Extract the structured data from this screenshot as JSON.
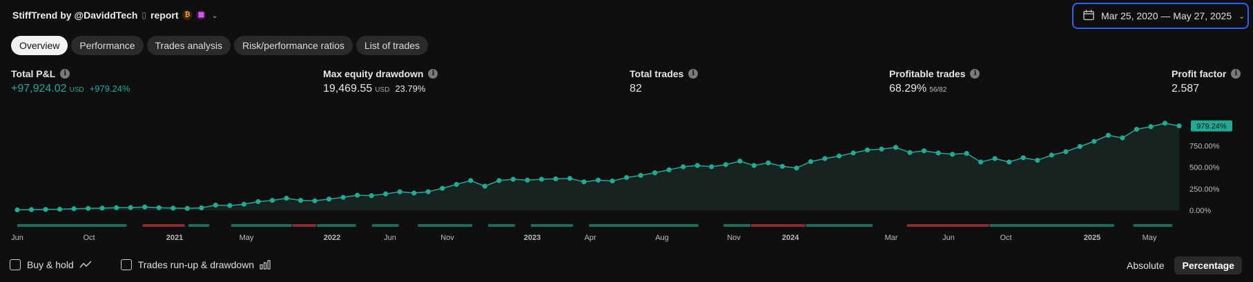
{
  "header": {
    "title": "StiffTrend by @DaviddTech",
    "glyph": "▯",
    "report_label": "report",
    "icons": [
      "strategy-badge-icon",
      "calendar-badge-icon"
    ],
    "dropdown_icon": "chevron-down-icon"
  },
  "date_range": {
    "label": "Mar 25, 2020 — May 27, 2025",
    "icon": "calendar-icon"
  },
  "tabs": [
    {
      "label": "Overview",
      "active": true
    },
    {
      "label": "Performance",
      "active": false
    },
    {
      "label": "Trades analysis",
      "active": false
    },
    {
      "label": "Risk/performance ratios",
      "active": false
    },
    {
      "label": "List of trades",
      "active": false
    }
  ],
  "stats": {
    "total_pnl": {
      "label": "Total P&L",
      "value": "+97,924.02",
      "unit": "USD",
      "pct": "+979.24%"
    },
    "max_drawdown": {
      "label": "Max equity drawdown",
      "value": "19,469.55",
      "unit": "USD",
      "pct": "23.79%"
    },
    "total_trades": {
      "label": "Total trades",
      "value": "82"
    },
    "profitable_trades": {
      "label": "Profitable trades",
      "value": "68.29%",
      "sub": "56/82"
    },
    "profit_factor": {
      "label": "Profit factor",
      "value": "2.587"
    }
  },
  "chart_data": {
    "type": "line",
    "y_ticks": [
      "0.00%",
      "250.00%",
      "500.00%",
      "750.00%"
    ],
    "ylim": [
      0,
      1000
    ],
    "last_value_label": "979.24%",
    "x_ticks": [
      {
        "label": "Jun",
        "bold": false
      },
      {
        "label": "Oct",
        "bold": false
      },
      {
        "label": "2021",
        "bold": true
      },
      {
        "label": "May",
        "bold": false
      },
      {
        "label": "2022",
        "bold": true
      },
      {
        "label": "Jun",
        "bold": false
      },
      {
        "label": "Nov",
        "bold": false
      },
      {
        "label": "2023",
        "bold": true
      },
      {
        "label": "Apr",
        "bold": false
      },
      {
        "label": "Aug",
        "bold": false
      },
      {
        "label": "Nov",
        "bold": false
      },
      {
        "label": "2024",
        "bold": true
      },
      {
        "label": "Mar",
        "bold": false
      },
      {
        "label": "Jun",
        "bold": false
      },
      {
        "label": "Oct",
        "bold": false
      },
      {
        "label": "2025",
        "bold": true
      },
      {
        "label": "May",
        "bold": false
      }
    ],
    "values": [
      5,
      8,
      10,
      12,
      18,
      22,
      25,
      30,
      32,
      38,
      30,
      25,
      22,
      28,
      60,
      55,
      70,
      100,
      115,
      140,
      115,
      110,
      130,
      150,
      175,
      170,
      190,
      215,
      200,
      215,
      255,
      300,
      345,
      280,
      345,
      360,
      350,
      360,
      365,
      370,
      330,
      350,
      340,
      380,
      405,
      435,
      470,
      505,
      520,
      505,
      530,
      570,
      520,
      550,
      510,
      490,
      565,
      600,
      630,
      665,
      700,
      710,
      730,
      670,
      690,
      665,
      650,
      660,
      560,
      600,
      560,
      610,
      580,
      640,
      680,
      740,
      800,
      870,
      840,
      940,
      970,
      1010,
      979.24
    ],
    "trade_bars": [
      {
        "from": 0.0,
        "to": 0.18,
        "result": "win"
      },
      {
        "from": 0.205,
        "to": 0.275,
        "result": "loss"
      },
      {
        "from": 0.28,
        "to": 0.315,
        "result": "win"
      },
      {
        "from": 0.35,
        "to": 0.45,
        "result": "win"
      },
      {
        "from": 0.45,
        "to": 0.49,
        "result": "loss"
      },
      {
        "from": 0.49,
        "to": 0.555,
        "result": "win"
      },
      {
        "from": 0.58,
        "to": 0.625,
        "result": "win"
      },
      {
        "from": 0.655,
        "to": 0.745,
        "result": "win"
      },
      {
        "from": 0.77,
        "to": 0.815,
        "result": "win"
      },
      {
        "from": 0.84,
        "to": 0.91,
        "result": "win"
      },
      {
        "from": 0.935,
        "to": 1.115,
        "result": "win"
      },
      {
        "from": 1.155,
        "to": 1.2,
        "result": "win"
      },
      {
        "from": 1.2,
        "to": 1.29,
        "result": "loss"
      },
      {
        "from": 1.29,
        "to": 1.4,
        "result": "win"
      },
      {
        "from": 1.455,
        "to": 1.59,
        "result": "loss"
      },
      {
        "from": 1.59,
        "to": 1.795,
        "result": "win"
      },
      {
        "from": 1.825,
        "to": 1.89,
        "result": "win"
      }
    ],
    "colors": {
      "line": "#22ab94",
      "win": "#1a6c5d",
      "loss": "#8c2a30",
      "label_bg": "#22ab94"
    }
  },
  "footer": {
    "buy_hold_label": "Buy & hold",
    "buy_hold_icon": "line-chart-icon",
    "runup_label": "Trades run-up & drawdown",
    "runup_icon": "bar-chart-icon",
    "absolute_label": "Absolute",
    "percentage_label": "Percentage"
  }
}
